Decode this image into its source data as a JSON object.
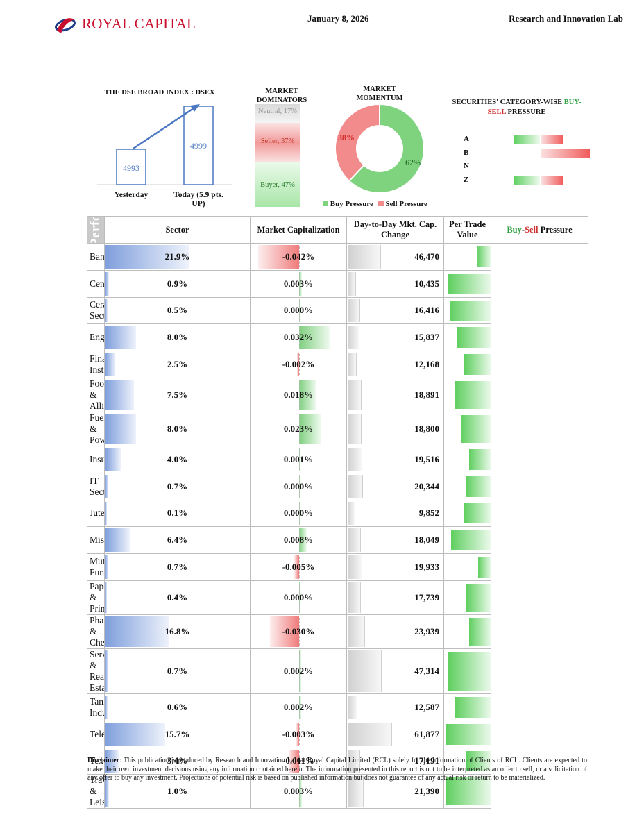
{
  "header": {
    "brand": "ROYAL CAPITAL",
    "date": "January 8, 2026",
    "lab": "Research and Innovation Lab"
  },
  "dsex": {
    "title": "THE DSE BROAD INDEX : DSEX",
    "yesterday_value": "4993",
    "today_value": "4999",
    "yesterday_label": "Yesterday",
    "today_label": "Today (5.9 pts. UP)"
  },
  "dominators": {
    "title": "MARKET DOMINATORS",
    "neutral": "Neutral, 17%",
    "seller": "Seller, 37%",
    "buyer": "Buyer, 47%",
    "neutral_pct": 17,
    "seller_pct": 37,
    "buyer_pct": 47
  },
  "momentum": {
    "title": "MARKET MOMENTUM",
    "buy_pct_label": "62%",
    "sell_pct_label": "38%",
    "buy_pct": 62,
    "sell_pct": 38,
    "legend_buy": "Buy Pressure",
    "legend_sell": "Sell Pressure",
    "buy_color": "#7fd37f",
    "sell_color": "#f28b8b"
  },
  "category": {
    "title_1": "SECURITIES' CATEGORY-WISE ",
    "title_buy": "BUY-",
    "title_sell": "SELL",
    "title_2": " PRESSURE",
    "rows": [
      {
        "label": "A",
        "buy": 0.55,
        "sell": 0.45
      },
      {
        "label": "B",
        "buy": 0.0,
        "sell": 1.0
      },
      {
        "label": "N",
        "buy": 0.0,
        "sell": 0.0
      },
      {
        "label": "Z",
        "buy": 0.55,
        "sell": 0.45
      }
    ]
  },
  "table": {
    "side_title": "Today's Market Performance : Bullish",
    "headers": {
      "sector": "Sector",
      "mcap": "Market Capitalization",
      "change": "Day-to-Day Mkt. Cap. Change",
      "ptv": "Per Trade Value",
      "bs_buy": "Buy",
      "bs_dash": "-",
      "bs_sell": "Sell",
      "bs_rest": " Pressure"
    },
    "rows": [
      {
        "sector": "Bank",
        "mcap": "21.9%",
        "mcap_v": 21.9,
        "chg": "-0.042%",
        "chg_v": -0.042,
        "ptv": "46,470",
        "ptv_v": 46470,
        "buy": 0.33,
        "sell": 0.37
      },
      {
        "sector": "Cement",
        "mcap": "0.9%",
        "mcap_v": 0.9,
        "chg": "0.003%",
        "chg_v": 0.003,
        "ptv": "10,435",
        "ptv_v": 10435,
        "buy": 0.95,
        "sell": 0.05
      },
      {
        "sector": "Ceramics Sector",
        "mcap": "0.5%",
        "mcap_v": 0.5,
        "chg": "0.000%",
        "chg_v": 0.0,
        "ptv": "16,416",
        "ptv_v": 16416,
        "buy": 0.93,
        "sell": 0.07
      },
      {
        "sector": "Engineering",
        "mcap": "8.0%",
        "mcap_v": 8.0,
        "chg": "0.032%",
        "chg_v": 0.032,
        "ptv": "15,837",
        "ptv_v": 15837,
        "buy": 0.75,
        "sell": 0.25
      },
      {
        "sector": "Financial Institutions",
        "mcap": "2.5%",
        "mcap_v": 2.5,
        "chg": "-0.002%",
        "chg_v": -0.002,
        "ptv": "12,168",
        "ptv_v": 12168,
        "buy": 0.6,
        "sell": 0.4
      },
      {
        "sector": "Food & Allied",
        "mcap": "7.5%",
        "mcap_v": 7.5,
        "chg": "0.018%",
        "chg_v": 0.018,
        "ptv": "18,891",
        "ptv_v": 18891,
        "buy": 0.8,
        "sell": 0.2
      },
      {
        "sector": "Fuel & Power",
        "mcap": "8.0%",
        "mcap_v": 8.0,
        "chg": "0.023%",
        "chg_v": 0.023,
        "ptv": "18,800",
        "ptv_v": 18800,
        "buy": 0.68,
        "sell": 0.32
      },
      {
        "sector": "Insurance",
        "mcap": "4.0%",
        "mcap_v": 4.0,
        "chg": "0.001%",
        "chg_v": 0.001,
        "ptv": "19,516",
        "ptv_v": 19516,
        "buy": 0.5,
        "sell": 0.5
      },
      {
        "sector": "IT Sector",
        "mcap": "0.7%",
        "mcap_v": 0.7,
        "chg": "0.000%",
        "chg_v": 0.0,
        "ptv": "20,344",
        "ptv_v": 20344,
        "buy": 0.55,
        "sell": 0.45
      },
      {
        "sector": "Jute",
        "mcap": "0.1%",
        "mcap_v": 0.1,
        "chg": "0.000%",
        "chg_v": 0.0,
        "ptv": "9,852",
        "ptv_v": 9852,
        "buy": 0.6,
        "sell": 0.4
      },
      {
        "sector": "Miscellaneous",
        "mcap": "6.4%",
        "mcap_v": 6.4,
        "chg": "0.008%",
        "chg_v": 0.008,
        "ptv": "18,049",
        "ptv_v": 18049,
        "buy": 0.9,
        "sell": 0.1
      },
      {
        "sector": "Mutual Funds",
        "mcap": "0.7%",
        "mcap_v": 0.7,
        "chg": "-0.005%",
        "chg_v": -0.005,
        "ptv": "19,933",
        "ptv_v": 19933,
        "buy": 0.3,
        "sell": 0.7
      },
      {
        "sector": "Paper & Printing",
        "mcap": "0.4%",
        "mcap_v": 0.4,
        "chg": "0.000%",
        "chg_v": 0.0,
        "ptv": "17,739",
        "ptv_v": 17739,
        "buy": 0.55,
        "sell": 0.45
      },
      {
        "sector": "Pharmaceuticals & Chemicals",
        "mcap": "16.8%",
        "mcap_v": 16.8,
        "chg": "-0.030%",
        "chg_v": -0.03,
        "ptv": "23,939",
        "ptv_v": 23939,
        "buy": 0.5,
        "sell": 0.5
      },
      {
        "sector": "Services & Real Estate",
        "mcap": "0.7%",
        "mcap_v": 0.7,
        "chg": "0.002%",
        "chg_v": 0.002,
        "ptv": "47,314",
        "ptv_v": 47314,
        "buy": 0.95,
        "sell": 0.05
      },
      {
        "sector": "Tannery Industries",
        "mcap": "0.6%",
        "mcap_v": 0.6,
        "chg": "0.002%",
        "chg_v": 0.002,
        "ptv": "12,587",
        "ptv_v": 12587,
        "buy": 0.8,
        "sell": 0.2
      },
      {
        "sector": "Telecommunication",
        "mcap": "15.7%",
        "mcap_v": 15.7,
        "chg": "-0.003%",
        "chg_v": -0.003,
        "ptv": "61,877",
        "ptv_v": 61877,
        "buy": 1.0,
        "sell": 0.0
      },
      {
        "sector": "Textile",
        "mcap": "3.4%",
        "mcap_v": 3.4,
        "chg": "-0.011%",
        "chg_v": -0.011,
        "ptv": "17,191",
        "ptv_v": 17191,
        "buy": 0.55,
        "sell": 0.45
      },
      {
        "sector": "Travel & Leisure",
        "mcap": "1.0%",
        "mcap_v": 1.0,
        "chg": "0.003%",
        "chg_v": 0.003,
        "ptv": "21,390",
        "ptv_v": 21390,
        "buy": 1.0,
        "sell": 0.0
      }
    ]
  },
  "disclaimer": {
    "label": "Disclaimer",
    "text": ": This publication is produced by Research and Innovation Lab at Royal Capital Limited (RCL) solely for the information of Clients of RCL. Clients are expected to make their own investment decisions using any information contained herein. The information presented in this report is not to be interpreted as an offer to sell, or a solicitation of any offer to buy any investment. Projections of potential risk is based on published information but does not guarantee of any actual risk or return to be materialized."
  }
}
